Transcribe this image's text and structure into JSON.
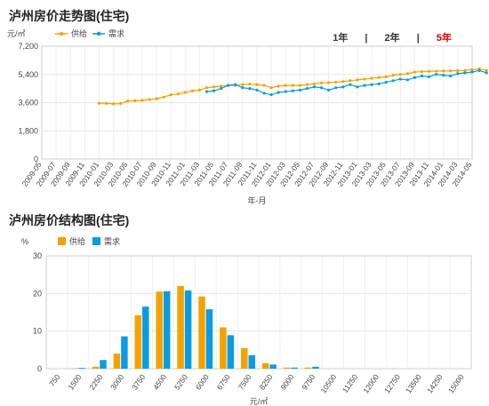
{
  "page": {
    "title1": "泸州房价走势图(住宅)",
    "title2": "泸州房价结构图(住宅)",
    "tabs": [
      "1年",
      "2年",
      "5年"
    ],
    "active_tab": "5年",
    "sep": "|"
  },
  "colors": {
    "supply": "#f5a200",
    "demand": "#0b9be3",
    "active_tab": "#d40000"
  },
  "chart_data": [
    {
      "type": "line",
      "unit_label": "元/㎡",
      "xlabel": "年-月",
      "ylim": [
        0,
        7200
      ],
      "yticks": [
        "0",
        "1,800",
        "3,600",
        "5,400",
        "7,200"
      ],
      "x_tick_labels": [
        "2009-05",
        "2009-07",
        "2009-09",
        "2009-11",
        "2010-01",
        "2010-03",
        "2010-05",
        "2010-07",
        "2010-09",
        "2010-11",
        "2011-01",
        "2011-03",
        "2011-05",
        "2011-07",
        "2011-09",
        "2011-11",
        "2012-01",
        "2012-03",
        "2012-05",
        "2012-07",
        "2012-09",
        "2012-11",
        "2013-01",
        "2013-03",
        "2013-05",
        "2013-07",
        "2013-09",
        "2013-11",
        "2014-01",
        "2014-03",
        "2014-05"
      ],
      "legend": [
        "供给",
        "需求"
      ],
      "series": [
        {
          "name": "供给",
          "start": "2010-01",
          "values": [
            3560,
            3550,
            3520,
            3540,
            3700,
            3720,
            3740,
            3790,
            3850,
            3950,
            4100,
            4150,
            4250,
            4350,
            4400,
            4550,
            4600,
            4650,
            4700,
            4700,
            4750,
            4780,
            4750,
            4700,
            4560,
            4650,
            4700,
            4700,
            4700,
            4750,
            4800,
            4850,
            4880,
            4900,
            4950,
            5000,
            5050,
            5100,
            5150,
            5200,
            5250,
            5350,
            5400,
            5450,
            5550,
            5580,
            5600,
            5610,
            5620,
            5630,
            5640,
            5650,
            5700,
            5750,
            5650
          ]
        },
        {
          "name": "需求",
          "start": "2011-04",
          "values": [
            4300,
            4350,
            4500,
            4700,
            4750,
            4550,
            4500,
            4400,
            4200,
            4100,
            4250,
            4300,
            4350,
            4400,
            4500,
            4600,
            4550,
            4400,
            4550,
            4600,
            4750,
            4600,
            4700,
            4750,
            4800,
            4900,
            5000,
            5100,
            5050,
            5200,
            5300,
            5250,
            5400,
            5350,
            5300,
            5450,
            5500,
            5550,
            5650,
            5500
          ]
        }
      ]
    },
    {
      "type": "bar",
      "ylabel": "%",
      "xlabel": "元/㎡",
      "ylim": [
        0,
        30
      ],
      "yticks": [
        "0",
        "10",
        "20",
        "30"
      ],
      "x_tick_labels": [
        "750",
        "1500",
        "2250",
        "3000",
        "3750",
        "4500",
        "5250",
        "6000",
        "6750",
        "7500",
        "8250",
        "9000",
        "9750",
        "10500",
        "11250",
        "12000",
        "12750",
        "13500",
        "14250",
        "15000"
      ],
      "legend": [
        "供给",
        "需求"
      ],
      "series": [
        {
          "name": "供给",
          "values": [
            0,
            0.1,
            0.5,
            4,
            14.2,
            20.5,
            22,
            19.2,
            11,
            5.5,
            1.5,
            0.3,
            0.3,
            0,
            0,
            0,
            0,
            0,
            0,
            0
          ]
        },
        {
          "name": "需求",
          "values": [
            0,
            0.2,
            2.3,
            8.6,
            16.5,
            20.6,
            20.8,
            15.8,
            8.9,
            3.6,
            1.1,
            0.3,
            0.5,
            0,
            0,
            0,
            0,
            0,
            0,
            0
          ]
        }
      ]
    }
  ]
}
